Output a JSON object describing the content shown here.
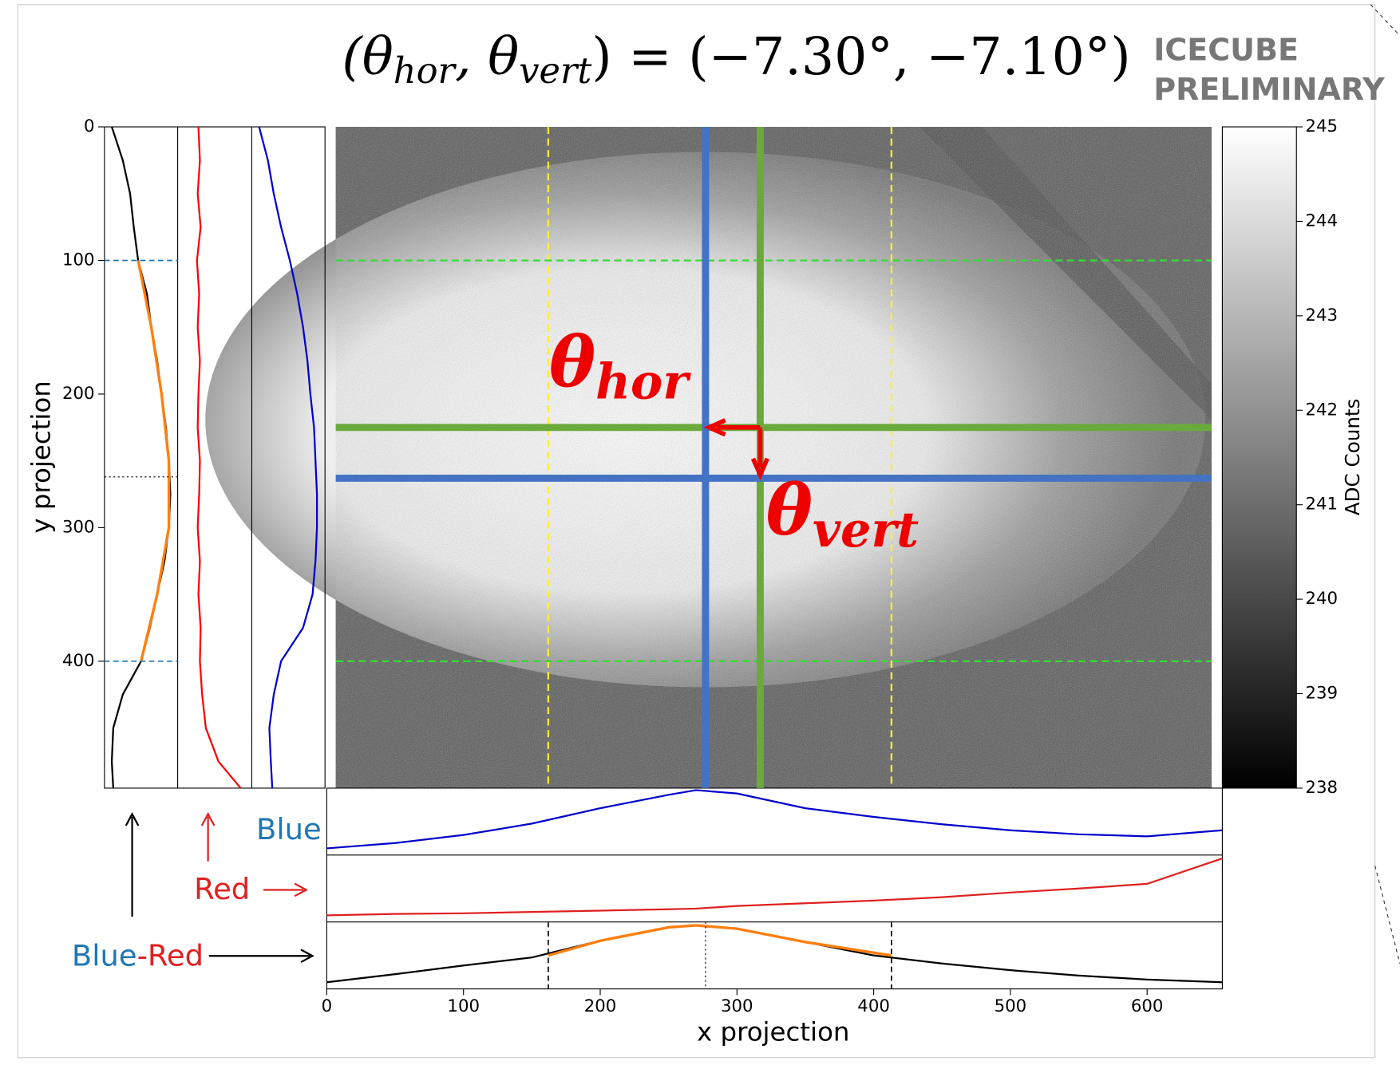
{
  "title": {
    "parts": [
      "(θ",
      "hor",
      ", θ",
      "vert",
      ") = (−7.30°, −7.10°)"
    ]
  },
  "watermark": [
    "ICECUBE",
    "PRELIMINARY"
  ],
  "chart_data": {
    "type": "projection",
    "xlabel": "x projection",
    "ylabel": "y projection",
    "xlim": [
      0,
      655
    ],
    "xticks": [
      0,
      100,
      200,
      300,
      400,
      500,
      600
    ],
    "ylim": [
      495,
      0
    ],
    "yticks": [
      0,
      100,
      200,
      300,
      400
    ],
    "colorbar": {
      "label": "ADC Counts",
      "lim": [
        238,
        245
      ],
      "ticks": [
        238,
        239,
        240,
        241,
        242,
        243,
        244,
        245
      ]
    },
    "crosshair": {
      "blue_x": 277,
      "green_x": 317,
      "green_y": 225,
      "blue_y": 263,
      "yellow_x": [
        162,
        413
      ],
      "green_dashed_y": [
        100,
        400
      ]
    },
    "annotations": {
      "hor": [
        "θ",
        "hor"
      ],
      "vert": [
        "θ",
        "vert"
      ]
    },
    "y_profiles": {
      "y": [
        0,
        25,
        50,
        75,
        100,
        125,
        150,
        175,
        200,
        225,
        250,
        275,
        300,
        325,
        350,
        375,
        400,
        425,
        450,
        475,
        495
      ],
      "series": [
        {
          "color": "#000000",
          "values": [
            10,
            25,
            35,
            40,
            46,
            58,
            64,
            72,
            78,
            84,
            88,
            90,
            88,
            82,
            72,
            62,
            50,
            25,
            12,
            10,
            12
          ]
        },
        {
          "color": "#ff0000",
          "values": [
            28,
            30,
            27,
            31,
            26,
            29,
            27,
            30,
            28,
            27,
            30,
            29,
            27,
            30,
            28,
            31,
            30,
            33,
            38,
            55,
            85
          ]
        },
        {
          "color": "#0000cc",
          "values": [
            10,
            22,
            30,
            40,
            52,
            62,
            70,
            76,
            80,
            85,
            87,
            89,
            89,
            87,
            83,
            70,
            40,
            30,
            24,
            26,
            28
          ]
        }
      ],
      "fit": {
        "color": "#ff7f0e",
        "y": [
          100,
          150,
          200,
          250,
          300,
          350,
          400
        ],
        "values": [
          46,
          64,
          78,
          88,
          88,
          72,
          50
        ]
      },
      "marks_y": [
        100,
        400
      ],
      "peak_y": 262
    },
    "x_profiles": {
      "x": [
        0,
        50,
        100,
        150,
        200,
        250,
        270,
        300,
        350,
        400,
        450,
        500,
        550,
        600,
        655
      ],
      "series": [
        {
          "name": "Blue",
          "color": "#0000cc",
          "values": [
            10,
            18,
            30,
            47,
            70,
            90,
            97,
            92,
            70,
            57,
            46,
            37,
            31,
            28,
            37
          ]
        },
        {
          "name": "Red",
          "color": "#e02020",
          "values": [
            10,
            12,
            13,
            15,
            17,
            19,
            20,
            24,
            28,
            32,
            37,
            44,
            50,
            57,
            95
          ]
        },
        {
          "color": "#000000",
          "values": [
            10,
            22,
            35,
            47,
            72,
            92,
            95,
            90,
            70,
            50,
            38,
            28,
            20,
            14,
            10
          ]
        }
      ],
      "fit": {
        "color": "#ff7f0e",
        "x": [
          162,
          200,
          250,
          270,
          300,
          350,
          413
        ],
        "values": [
          50,
          72,
          92,
          95,
          90,
          70,
          50
        ]
      },
      "marks_x": [
        162,
        413
      ],
      "peak_x": 277
    },
    "blue_red_label": [
      "Blue",
      "-Red"
    ]
  }
}
